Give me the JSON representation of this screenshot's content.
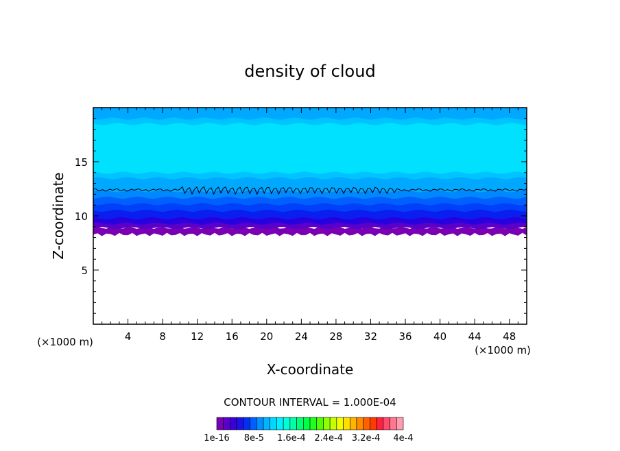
{
  "chart_data": {
    "type": "heatmap",
    "title": "density of cloud",
    "xlabel": "X-coordinate",
    "ylabel": "Z-coordinate",
    "x_unit": "(×1000 m)",
    "y_unit": "(×1000 m)",
    "xlim": [
      0,
      50
    ],
    "ylim": [
      0,
      20
    ],
    "x_ticks": [
      4,
      8,
      12,
      16,
      20,
      24,
      28,
      32,
      36,
      40,
      44,
      48
    ],
    "y_ticks": [
      5,
      10,
      15
    ],
    "contour_interval": "CONTOUR INTERVAL = 1.000E-04",
    "colorbar": {
      "labels": [
        "1e-16",
        "8e-5",
        "1.6e-4",
        "2.4e-4",
        "3.2e-4",
        "4e-4"
      ],
      "colors": [
        "#7a00b4",
        "#5a00c8",
        "#3a00d8",
        "#1e10e6",
        "#0030f0",
        "#0060ff",
        "#0090ff",
        "#00b4ff",
        "#00d8ff",
        "#00f0ff",
        "#00ffd8",
        "#00ffa8",
        "#00ff78",
        "#00ff48",
        "#20ff20",
        "#50ff00",
        "#90ff00",
        "#c8ff00",
        "#f0ff00",
        "#ffe000",
        "#ffb400",
        "#ff8c00",
        "#ff6000",
        "#ff3c00",
        "#ff2040",
        "#ff4c6c",
        "#ff7890",
        "#ff9cb0"
      ]
    },
    "layers": [
      {
        "z_bottom": 8.3,
        "z_top": 8.9,
        "color": "#7a00b4"
      },
      {
        "z_bottom": 8.9,
        "z_top": 9.3,
        "color": "#5a00c8"
      },
      {
        "z_bottom": 9.3,
        "z_top": 9.8,
        "color": "#2800e0"
      },
      {
        "z_bottom": 9.8,
        "z_top": 10.5,
        "color": "#0a1ef0"
      },
      {
        "z_bottom": 10.5,
        "z_top": 11.1,
        "color": "#0040f8"
      },
      {
        "z_bottom": 11.1,
        "z_top": 11.7,
        "color": "#0060ff"
      },
      {
        "z_bottom": 11.7,
        "z_top": 12.3,
        "color": "#0088ff"
      },
      {
        "z_bottom": 12.3,
        "z_top": 13.5,
        "color": "#00a8ff"
      },
      {
        "z_bottom": 13.5,
        "z_top": 14.0,
        "color": "#00c4ff"
      },
      {
        "z_bottom": 14.0,
        "z_top": 18.5,
        "color": "#00e0ff"
      },
      {
        "z_bottom": 18.5,
        "z_top": 19.0,
        "color": "#00c4ff"
      },
      {
        "z_bottom": 19.0,
        "z_top": 20.0,
        "color": "#00a8ff"
      }
    ],
    "contour_line_z": 12.4
  }
}
